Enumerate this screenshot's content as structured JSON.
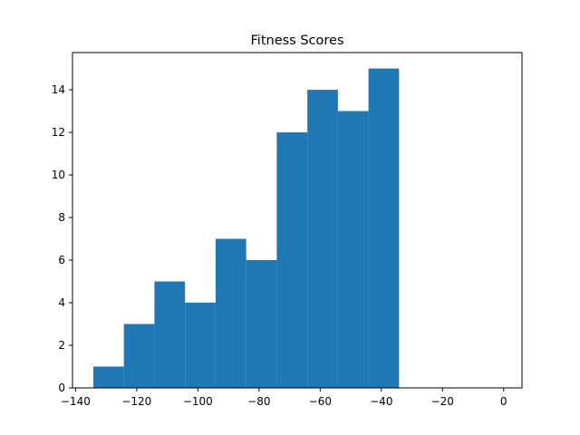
{
  "chart_data": {
    "type": "bar",
    "title": "Fitness Scores",
    "xlabel": "",
    "ylabel": "",
    "bins": [
      {
        "x0": -134.2,
        "x1": -124.2,
        "count": 1
      },
      {
        "x0": -124.2,
        "x1": -114.2,
        "count": 3
      },
      {
        "x0": -114.2,
        "x1": -104.2,
        "count": 5
      },
      {
        "x0": -104.2,
        "x1": -94.2,
        "count": 4
      },
      {
        "x0": -94.2,
        "x1": -84.2,
        "count": 7
      },
      {
        "x0": -84.2,
        "x1": -74.2,
        "count": 6
      },
      {
        "x0": -74.2,
        "x1": -64.2,
        "count": 12
      },
      {
        "x0": -64.2,
        "x1": -54.2,
        "count": 14
      },
      {
        "x0": -54.2,
        "x1": -44.2,
        "count": 13
      },
      {
        "x0": -44.2,
        "x1": -34.2,
        "count": 15
      }
    ],
    "xlim": [
      -141,
      6
    ],
    "ylim": [
      0,
      15.75
    ],
    "xticks": [
      -140,
      -120,
      -100,
      -80,
      -60,
      -40,
      -20,
      0
    ],
    "xtick_labels": [
      "−140",
      "−120",
      "−100",
      "−80",
      "−60",
      "−40",
      "−20",
      "0"
    ],
    "yticks": [
      0,
      2,
      4,
      6,
      8,
      10,
      12,
      14
    ],
    "ytick_labels": [
      "0",
      "2",
      "4",
      "6",
      "8",
      "10",
      "12",
      "14"
    ],
    "grid": false,
    "bar_color": "#1f77b4"
  }
}
